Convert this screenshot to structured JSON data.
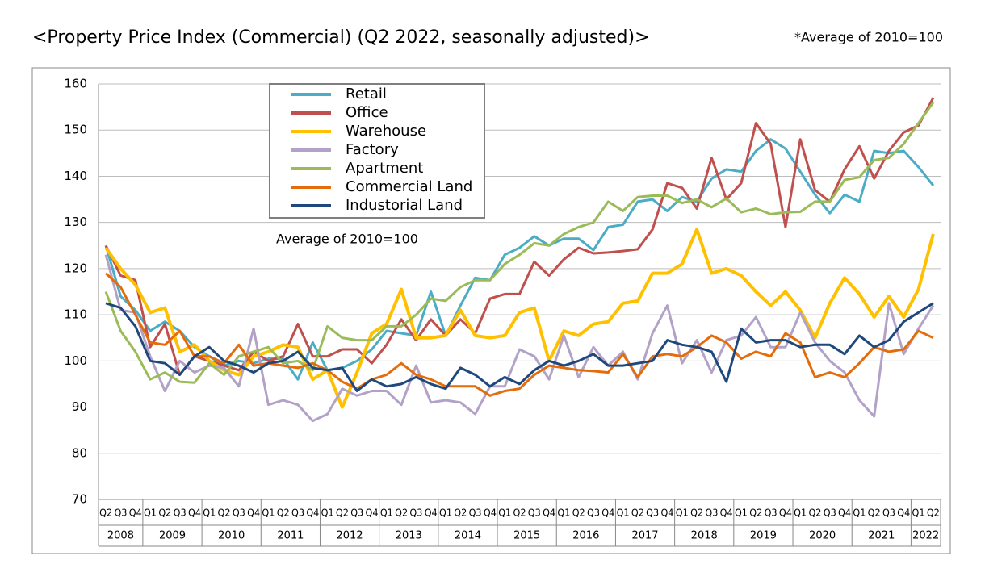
{
  "chart_data": {
    "type": "line",
    "title": "<Property Price Index (Commercial) (Q2 2022, seasonally adjusted)>",
    "note": "*Average of 2010=100",
    "annotation": "Average of 2010=100",
    "categories": [
      "Q2",
      "Q3",
      "Q4",
      "Q1",
      "Q2",
      "Q3",
      "Q4",
      "Q1",
      "Q2",
      "Q3",
      "Q4",
      "Q1",
      "Q2",
      "Q3",
      "Q4",
      "Q1",
      "Q2",
      "Q3",
      "Q4",
      "Q1",
      "Q2",
      "Q3",
      "Q4",
      "Q1",
      "Q2",
      "Q3",
      "Q4",
      "Q1",
      "Q2",
      "Q3",
      "Q4",
      "Q1",
      "Q2",
      "Q3",
      "Q4",
      "Q1",
      "Q2",
      "Q3",
      "Q4",
      "Q1",
      "Q2",
      "Q3",
      "Q4",
      "Q1",
      "Q2",
      "Q3",
      "Q4",
      "Q1",
      "Q2",
      "Q3",
      "Q4",
      "Q1",
      "Q2",
      "Q3",
      "Q4",
      "Q1",
      "Q2"
    ],
    "years": [
      "2008",
      "2009",
      "2010",
      "2011",
      "2012",
      "2013",
      "2014",
      "2015",
      "2016",
      "2017",
      "2018",
      "2019",
      "2020",
      "2021",
      "2022"
    ],
    "ylim": [
      70,
      160
    ],
    "yticks": [
      70,
      80,
      90,
      100,
      110,
      120,
      130,
      140,
      150,
      160
    ],
    "grid": true,
    "series": [
      {
        "name": "Retail",
        "color": "#4bacc6",
        "values": [
          125,
          114,
          111,
          106.5,
          108.5,
          106.5,
          103,
          101,
          99,
          100,
          99.5,
          100.5,
          100.5,
          96,
          104,
          98,
          98.5,
          100,
          102.5,
          106.5,
          106,
          105.5,
          115,
          105.5,
          112,
          118,
          117.5,
          123,
          124.5,
          127,
          125,
          126.5,
          126.5,
          124,
          129,
          129.5,
          134.5,
          135,
          132.5,
          135.5,
          134.5,
          139.5,
          141.5,
          141,
          145.5,
          148,
          146,
          141,
          136,
          132,
          136,
          134.5,
          145.5,
          145,
          145.5,
          142,
          138
        ]
      },
      {
        "name": "Office",
        "color": "#c0504d",
        "values": [
          125,
          118.5,
          117.5,
          103,
          108,
          97,
          101,
          100,
          99,
          98,
          102,
          100,
          101,
          108,
          101,
          101,
          102.5,
          102.5,
          99.5,
          103.5,
          109,
          104.5,
          109,
          105.5,
          109,
          106,
          113.5,
          114.5,
          114.5,
          121.5,
          118.5,
          122,
          124.5,
          123.3,
          123.5,
          123.8,
          124.2,
          128.5,
          138.5,
          137.5,
          133,
          144,
          135,
          138.5,
          151.5,
          147,
          129,
          148,
          137,
          134.5,
          141.5,
          146.5,
          139.5,
          145.5,
          149.5,
          151,
          157
        ]
      },
      {
        "name": "Warehouse",
        "color": "#ffc000",
        "values": [
          124.5,
          120,
          116.5,
          110.5,
          111.5,
          102,
          103.5,
          100,
          98,
          97,
          101,
          102,
          103.5,
          103,
          96,
          98,
          90,
          97.5,
          106,
          108,
          115.5,
          105,
          105,
          105.5,
          111,
          105.5,
          105,
          105.5,
          110.5,
          111.5,
          100,
          106.5,
          105.5,
          108,
          108.5,
          112.5,
          113,
          119,
          119,
          121,
          128.5,
          119,
          120,
          118.5,
          115,
          112,
          115,
          111,
          105,
          112.5,
          118,
          114.5,
          109.5,
          114,
          109.5,
          115.5,
          127.5
        ]
      },
      {
        "name": "Factory",
        "color": "#b3a2c7",
        "values": [
          123,
          111,
          110.5,
          101,
          93.5,
          100,
          97.5,
          99,
          98.5,
          94.5,
          107,
          90.5,
          91.5,
          90.5,
          87,
          88.5,
          94,
          92.5,
          93.5,
          93.5,
          90.5,
          99,
          91,
          91.5,
          91,
          88.5,
          94.5,
          94.5,
          102.5,
          101,
          96,
          105.5,
          96.5,
          103,
          99,
          102,
          96,
          106,
          112,
          99.5,
          104.5,
          97.5,
          104.5,
          105.5,
          109.5,
          103,
          103,
          110.5,
          104,
          100,
          97.5,
          91.5,
          88,
          112.5,
          101.5,
          107,
          112
        ]
      },
      {
        "name": "Apartment",
        "color": "#9bbb59",
        "values": [
          115,
          106.5,
          102,
          96,
          97.5,
          95.5,
          95.3,
          99.5,
          97,
          101,
          102,
          103,
          99.5,
          100,
          98,
          107.5,
          105,
          104.5,
          104.5,
          107.5,
          107.5,
          110,
          113.5,
          113,
          116,
          117.5,
          117.5,
          121,
          123,
          125.5,
          125,
          127.5,
          129,
          130,
          134.5,
          132.5,
          135.5,
          135.8,
          135.8,
          134.2,
          135,
          133.3,
          135.2,
          132.2,
          133,
          131.8,
          132.2,
          132.3,
          134.5,
          134.5,
          139.2,
          139.8,
          143.5,
          144,
          147,
          151.5,
          156
        ]
      },
      {
        "name": "Commercial Land",
        "color": "#e46c0a",
        "values": [
          119,
          116,
          110,
          104,
          103.5,
          106.5,
          101,
          101,
          99.5,
          103.5,
          99,
          99.5,
          99,
          98.5,
          99.5,
          98,
          95.5,
          94,
          96,
          97,
          99.5,
          97,
          96,
          94.5,
          94.5,
          94.5,
          92.5,
          93.5,
          94,
          97,
          99,
          98.5,
          98,
          97.8,
          97.5,
          101.5,
          96.5,
          101,
          101.5,
          101,
          103,
          105.5,
          104,
          100.5,
          102,
          101,
          106,
          104,
          96.5,
          97.5,
          96.5,
          99.5,
          103,
          102,
          102.5,
          106.5,
          105
        ]
      },
      {
        "name": "Industorial Land",
        "color": "#1f497d",
        "values": [
          112.5,
          111.5,
          107.5,
          100,
          99.5,
          97,
          101,
          103,
          100,
          99,
          97.5,
          99.5,
          100,
          102,
          98.5,
          98,
          98.5,
          93.5,
          96,
          94.5,
          95,
          96.5,
          95,
          94,
          98.5,
          97,
          94.5,
          96.5,
          95,
          98,
          100,
          99,
          100,
          101.5,
          99,
          99,
          99.5,
          100,
          104.5,
          103.5,
          103,
          102,
          95.5,
          107,
          104,
          104.5,
          104.5,
          103,
          103.5,
          103.5,
          101.5,
          105.5,
          103,
          104.5,
          108.5,
          110.5,
          112.5
        ]
      }
    ]
  }
}
